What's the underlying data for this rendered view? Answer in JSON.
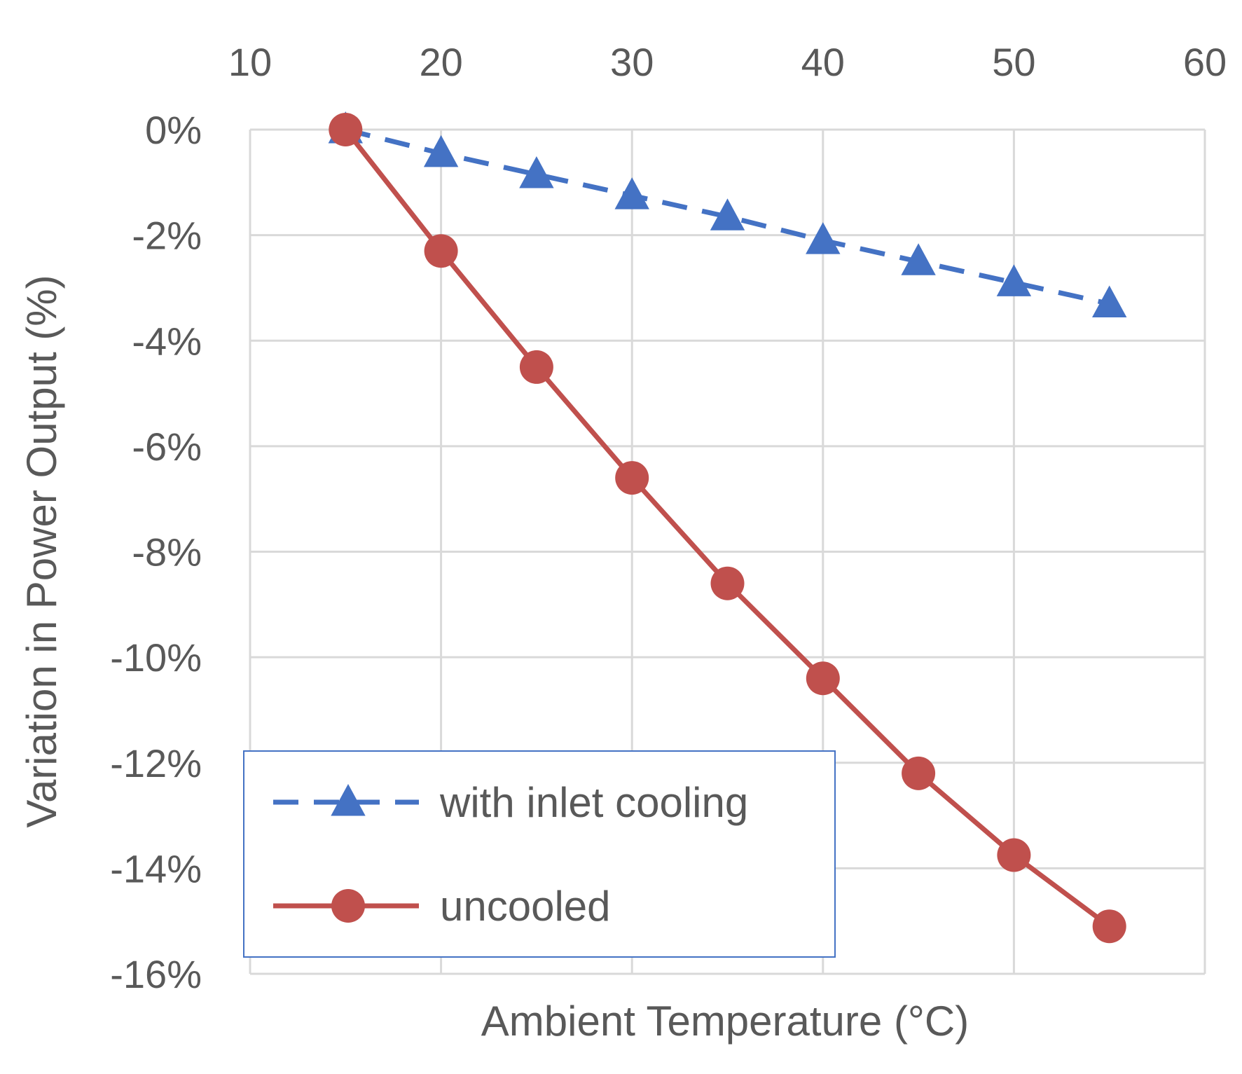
{
  "chart_data": {
    "type": "line",
    "title": "",
    "xlabel": "Ambient  Temperature (°C)",
    "ylabel": "Variation in Power Output (%)",
    "x_axis_position": "top",
    "xlim": [
      10,
      60
    ],
    "ylim": [
      -16,
      0
    ],
    "xticks": [
      10,
      20,
      30,
      40,
      50,
      60
    ],
    "yticks": [
      0,
      -2,
      -4,
      -6,
      -8,
      -10,
      -12,
      -14,
      -16
    ],
    "ytick_labels": [
      "0%",
      "-2%",
      "-4%",
      "-6%",
      "-8%",
      "-10%",
      "-12%",
      "-14%",
      "-16%"
    ],
    "grid": true,
    "legend_position": "bottom-left",
    "series": [
      {
        "name": "with inlet cooling",
        "color": "#4472C4",
        "line_style": "dashed",
        "marker": "triangle",
        "x": [
          15,
          20,
          25,
          30,
          35,
          40,
          45,
          50,
          55
        ],
        "y": [
          0,
          -0.45,
          -0.85,
          -1.25,
          -1.65,
          -2.1,
          -2.5,
          -2.9,
          -3.3
        ]
      },
      {
        "name": "uncooled",
        "color": "#C0504D",
        "line_style": "solid",
        "marker": "circle",
        "x": [
          15,
          20,
          25,
          30,
          35,
          40,
          45,
          50,
          55
        ],
        "y": [
          0,
          -2.3,
          -4.5,
          -6.6,
          -8.6,
          -10.4,
          -12.2,
          -13.75,
          -15.1
        ]
      }
    ]
  }
}
